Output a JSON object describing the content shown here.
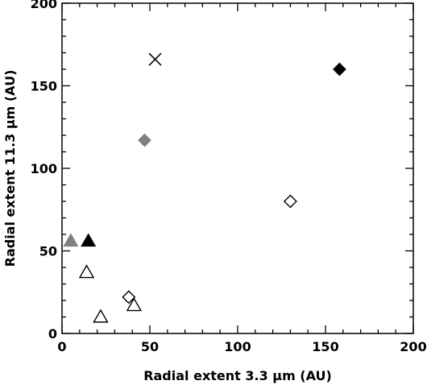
{
  "chart_data": {
    "type": "scatter",
    "xlabel": "Radial extent 3.3 μm (AU)",
    "ylabel": "Radial extent 11.3 μm (AU)",
    "xlim": [
      0,
      200
    ],
    "ylim": [
      0,
      200
    ],
    "xticks": [
      0,
      50,
      100,
      150,
      200
    ],
    "yticks": [
      0,
      50,
      100,
      150,
      200
    ],
    "x_tick_labels": [
      "0",
      "50",
      "100",
      "150",
      "200"
    ],
    "y_tick_labels": [
      "0",
      "50",
      "100",
      "150",
      "200"
    ],
    "grid": false,
    "series": [
      {
        "marker": "triangle",
        "fill": "#808080",
        "points": [
          {
            "x": 5,
            "y": 56
          }
        ]
      },
      {
        "marker": "triangle",
        "fill": "#000000",
        "points": [
          {
            "x": 15,
            "y": 56
          }
        ]
      },
      {
        "marker": "triangle",
        "fill": "none",
        "points": [
          {
            "x": 14,
            "y": 37
          },
          {
            "x": 22,
            "y": 10
          },
          {
            "x": 41,
            "y": 17
          }
        ]
      },
      {
        "marker": "diamond",
        "fill": "#808080",
        "points": [
          {
            "x": 47,
            "y": 117
          }
        ]
      },
      {
        "marker": "diamond",
        "fill": "#000000",
        "points": [
          {
            "x": 158,
            "y": 160
          }
        ]
      },
      {
        "marker": "diamond",
        "fill": "none",
        "points": [
          {
            "x": 38,
            "y": 22
          },
          {
            "x": 130,
            "y": 80
          }
        ]
      },
      {
        "marker": "cross",
        "fill": "none",
        "points": [
          {
            "x": 53,
            "y": 166
          }
        ]
      }
    ]
  }
}
